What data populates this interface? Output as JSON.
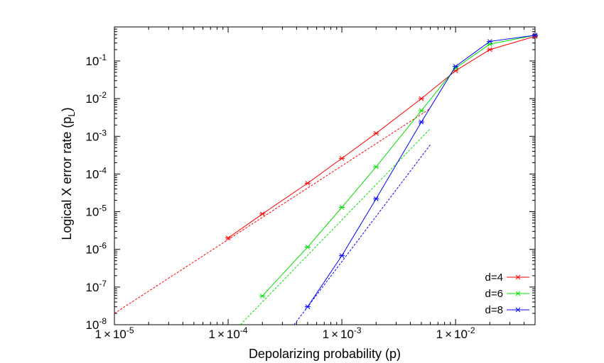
{
  "chart_data": {
    "type": "line",
    "title": "",
    "xlabel": "Depolarizing probability (p)",
    "ylabel_main": "Logical X error rate (p",
    "ylabel_sub": "L",
    "ylabel_close": ")",
    "xscale": "log",
    "yscale": "log",
    "xlim": [
      1e-05,
      0.05
    ],
    "ylim": [
      1e-08,
      0.8
    ],
    "grid": false,
    "legend_position": "bottom-right",
    "x_ticks": [
      {
        "value": 1e-05,
        "mantissa": "1",
        "times": "×",
        "base": "10",
        "exp": "-5"
      },
      {
        "value": 0.0001,
        "mantissa": "1",
        "times": "×",
        "base": "10",
        "exp": "-4"
      },
      {
        "value": 0.001,
        "mantissa": "1",
        "times": "×",
        "base": "10",
        "exp": "-3"
      },
      {
        "value": 0.01,
        "mantissa": "1",
        "times": "×",
        "base": "10",
        "exp": "-2"
      }
    ],
    "y_ticks": [
      {
        "value": 1e-08,
        "base": "10",
        "exp": "-8"
      },
      {
        "value": 1e-07,
        "base": "10",
        "exp": "-7"
      },
      {
        "value": 1e-06,
        "base": "10",
        "exp": "-6"
      },
      {
        "value": 1e-05,
        "base": "10",
        "exp": "-5"
      },
      {
        "value": 0.0001,
        "base": "10",
        "exp": "-4"
      },
      {
        "value": 0.001,
        "base": "10",
        "exp": "-3"
      },
      {
        "value": 0.01,
        "base": "10",
        "exp": "-2"
      },
      {
        "value": 0.1,
        "base": "10",
        "exp": "-1"
      }
    ],
    "series": [
      {
        "name": "d=4",
        "color": "#ff0000",
        "x": [
          0.0001,
          0.0002,
          0.0005,
          0.001,
          0.002,
          0.005,
          0.01,
          0.02,
          0.05
        ],
        "y": [
          2e-06,
          8.7e-06,
          5.7e-05,
          0.00026,
          0.0012,
          0.01,
          0.055,
          0.2,
          0.45
        ],
        "fit": {
          "x": [
            1e-05,
            0.006
          ],
          "y": [
            2e-08,
            0.0055
          ]
        }
      },
      {
        "name": "d=6",
        "color": "#00e000",
        "x": [
          0.0002,
          0.0005,
          0.001,
          0.002,
          0.005,
          0.01,
          0.02,
          0.05
        ],
        "y": [
          5.8e-08,
          1.15e-06,
          1.3e-05,
          0.000155,
          0.0048,
          0.065,
          0.28,
          0.48
        ],
        "fit": {
          "x": [
            0.000128,
            0.006
          ],
          "y": [
            1e-08,
            0.0016
          ]
        }
      },
      {
        "name": "d=8",
        "color": "#0000ff",
        "x": [
          0.0005,
          0.001,
          0.002,
          0.005,
          0.01,
          0.02,
          0.05
        ],
        "y": [
          3e-08,
          6.8e-07,
          2.2e-05,
          0.0024,
          0.072,
          0.33,
          0.48
        ],
        "fit": {
          "x": [
            0.00038,
            0.006
          ],
          "y": [
            1e-08,
            0.0006
          ]
        }
      }
    ]
  }
}
